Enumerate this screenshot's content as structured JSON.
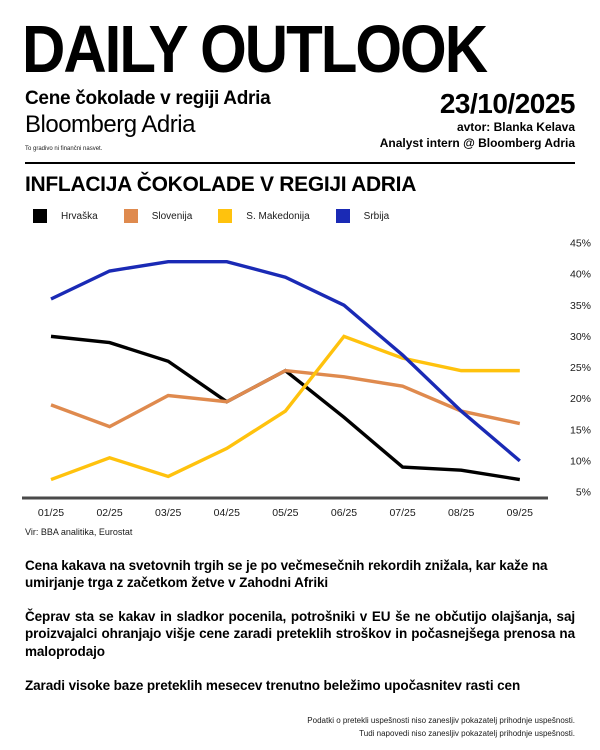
{
  "header": {
    "masthead": "DAILY OUTLOOK",
    "subtitle": "Cene čokolade v regiji Adria",
    "brand": "Bloomberg Adria",
    "disclaimer": "To gradivo ni finančni nasvet.",
    "date": "23/10/2025",
    "author": "avtor: Blanka Kelava",
    "author_role": "Analyst intern @ Bloomberg Adria"
  },
  "chart": {
    "source": "Vir: BBA analitika, Eurostat"
  },
  "chart_data": {
    "type": "line",
    "title": "INFLACIJA ČOKOLADE V REGIJI ADRIA",
    "categories": [
      "01/25",
      "02/25",
      "03/25",
      "04/25",
      "05/25",
      "06/25",
      "07/25",
      "08/25",
      "09/25"
    ],
    "series": [
      {
        "name": "Hrvaška",
        "color": "#000000",
        "values": [
          30,
          29,
          26,
          19.5,
          24.5,
          17,
          9,
          8.5,
          7
        ]
      },
      {
        "name": "Slovenija",
        "color": "#DF8A4E",
        "values": [
          19,
          15.5,
          20.5,
          19.5,
          24.5,
          23.5,
          22,
          18,
          16
        ]
      },
      {
        "name": "S. Makedonija",
        "color": "#FFC20D",
        "values": [
          7,
          10.5,
          7.5,
          12,
          18,
          30,
          26.5,
          24.5,
          24.5
        ]
      },
      {
        "name": "Srbija",
        "color": "#1A2AB5",
        "values": [
          36,
          40.5,
          42,
          42,
          39.5,
          35,
          27,
          18,
          10
        ]
      }
    ],
    "ylim": [
      5,
      45
    ],
    "ytick_step": 5,
    "ytick_labels": [
      "45%",
      "40%",
      "35%",
      "30%",
      "25%",
      "20%",
      "15%",
      "10%",
      "5%"
    ],
    "yaxis_side": "right",
    "xlabel": "",
    "ylabel": "",
    "grid": false,
    "legend_position": "top"
  },
  "body": {
    "paragraphs": [
      "Cena kakava na svetovnih trgih se je po večmesečnih rekordih znižala, kar kaže na umirjanje trga z začetkom žetve v Zahodni Afriki",
      "Čeprav sta se kakav in sladkor pocenila, potrošniki v EU še ne občutijo olajšanja, saj proizvajalci ohranjajo višje cene zaradi preteklih stroškov in počasnejšega prenosa na maloprodajo",
      "Zaradi visoke baze preteklih mesecev trenutno beležimo upočasnitev rasti cen"
    ]
  },
  "footer": {
    "line1": "Podatki o pretekli uspešnosti niso zanesljiv pokazatelj prihodnje uspešnosti.",
    "line2": "Tudi napovedi niso zanesljiv pokazatelj prihodnje uspešnosti."
  }
}
